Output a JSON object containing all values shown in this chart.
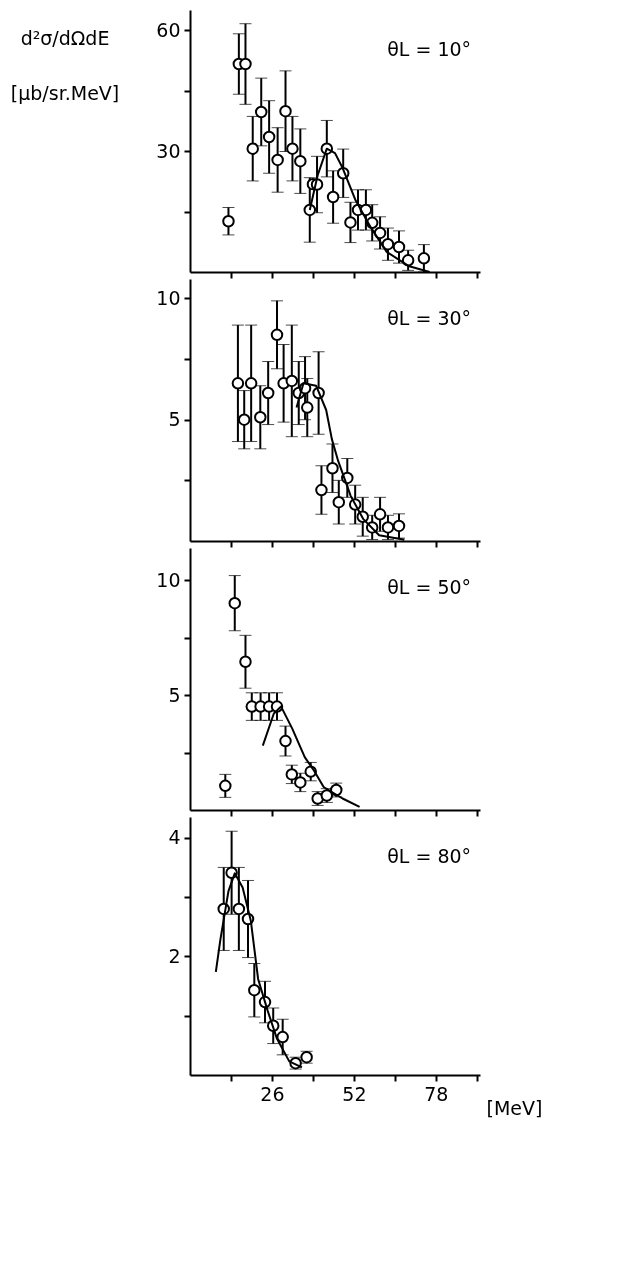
{
  "chart_data": [
    {
      "type": "scatter",
      "ylabel": "d²σ/dΩdE [μb/sr.MeV]",
      "annotations": [
        "θL = 10°"
      ],
      "xlim": [
        0,
        92
      ],
      "ylim": [
        0,
        65
      ],
      "xticks": [
        {
          "value": 13,
          "label": null
        },
        {
          "value": 26,
          "label": null
        },
        {
          "value": 39,
          "label": null
        },
        {
          "value": 52,
          "label": null
        },
        {
          "value": 65,
          "label": null
        },
        {
          "value": 78,
          "label": null
        },
        {
          "value": 91,
          "label": null
        }
      ],
      "yticks": [
        {
          "value": 15,
          "label": null
        },
        30,
        {
          "value": 45,
          "label": null
        },
        60
      ],
      "tick_labels": "y",
      "grid": false,
      "legend": false,
      "series": [
        {
          "type": "scatter",
          "color": "#000000",
          "marker": "circle",
          "x": [
            12.2,
            15.5,
            17.6,
            19.9,
            22.6,
            25.1,
            27.8,
            30.3,
            32.5,
            35.0,
            38.0,
            39.0,
            40.3,
            43.4,
            45.4,
            48.6,
            50.9,
            53.3,
            55.8,
            57.8,
            60.3,
            62.8,
            66.3,
            69.2,
            74.2
          ],
          "values": [
            12.6,
            51.6,
            51.6,
            30.6,
            39.7,
            33.5,
            27.8,
            39.9,
            30.6,
            27.5,
            15.4,
            21.8,
            21.7,
            30.6,
            18.6,
            24.5,
            12.3,
            15.4,
            15.4,
            12.2,
            9.7,
            6.9,
            6.2,
            2.9,
            3.4
          ],
          "errors": [
            3.4,
            7.5,
            10,
            8,
            8.4,
            9,
            8,
            10,
            8,
            8,
            8,
            null,
            7,
            7,
            6.5,
            6,
            5,
            5,
            5,
            4.5,
            4,
            4,
            4,
            2.5,
            3.4
          ]
        },
        {
          "type": "line",
          "color": "#000000",
          "line_style": "solid",
          "x": [
            38.0,
            40.5,
            43.4,
            46.0,
            48.3,
            52.4,
            57.4,
            62.4,
            69.3,
            76.0
          ],
          "values": [
            15.4,
            24.0,
            30.6,
            29.5,
            26.0,
            18.0,
            11.0,
            5.0,
            1.5,
            0.0
          ]
        }
      ]
    },
    {
      "type": "scatter",
      "xlim": [
        0,
        92
      ],
      "ylim": [
        0,
        10.8
      ],
      "xticks": [
        {
          "value": 13,
          "label": null
        },
        {
          "value": 26,
          "label": null
        },
        {
          "value": 39,
          "label": null
        },
        {
          "value": 52,
          "label": null
        },
        {
          "value": 65,
          "label": null
        },
        {
          "value": 78,
          "label": null
        },
        {
          "value": 91,
          "label": null
        }
      ],
      "yticks": [
        {
          "value": 2.5,
          "label": null
        },
        5,
        {
          "value": 7.5,
          "label": null
        },
        10
      ],
      "tick_labels": "y",
      "grid": false,
      "legend": false,
      "annotations": [
        "θL = 30°"
      ],
      "series": [
        {
          "type": "scatter",
          "color": "#000000",
          "marker": "circle",
          "x": [
            15.2,
            17.2,
            19.4,
            22.3,
            24.8,
            27.6,
            29.7,
            32.3,
            34.5,
            36.5,
            37.2,
            40.8,
            41.7,
            45.2,
            47.2,
            49.9,
            52.4,
            54.8,
            57.8,
            60.3,
            62.8,
            66.3
          ],
          "values": [
            6.5,
            5.0,
            6.5,
            5.1,
            6.1,
            8.5,
            6.5,
            6.6,
            6.1,
            6.3,
            5.5,
            6.1,
            2.1,
            3.0,
            1.6,
            2.6,
            1.5,
            1.0,
            0.56,
            1.1,
            0.56,
            0.62
          ],
          "errors": [
            2.4,
            1.2,
            2.4,
            1.3,
            1.3,
            1.4,
            1.6,
            2.3,
            1.3,
            1.3,
            1.2,
            1.7,
            1.0,
            1.0,
            0.9,
            0.8,
            0.8,
            0.8,
            0.5,
            0.7,
            0.5,
            0.5
          ]
        },
        {
          "type": "line",
          "color": "#000000",
          "line_style": "solid",
          "x": [
            33.8,
            36.0,
            40.0,
            43.2,
            45.0,
            47.0,
            51.0,
            55.0,
            60.0,
            68.0
          ],
          "values": [
            5.5,
            6.5,
            6.4,
            5.4,
            4.2,
            3.3,
            1.85,
            0.9,
            0.24,
            0.05
          ]
        }
      ]
    },
    {
      "type": "scatter",
      "xlim": [
        0,
        92
      ],
      "ylim": [
        0,
        11.4
      ],
      "xticks": [
        {
          "value": 13,
          "label": null
        },
        {
          "value": 26,
          "label": null
        },
        {
          "value": 39,
          "label": null
        },
        {
          "value": 52,
          "label": null
        },
        {
          "value": 65,
          "label": null
        },
        {
          "value": 78,
          "label": null
        },
        {
          "value": 91,
          "label": null
        }
      ],
      "yticks": [
        {
          "value": 2.5,
          "label": null
        },
        5,
        {
          "value": 7.5,
          "label": null
        },
        10
      ],
      "tick_labels": "y",
      "grid": false,
      "legend": false,
      "annotations": [
        "θL = 50°"
      ],
      "series": [
        {
          "type": "scatter",
          "color": "#000000",
          "marker": "circle",
          "x": [
            11.2,
            14.2,
            17.6,
            19.6,
            22.4,
            25.1,
            27.6,
            30.3,
            32.3,
            35.0,
            38.3,
            40.5,
            43.4,
            46.4
          ],
          "values": [
            1.05,
            9.0,
            6.45,
            4.5,
            4.5,
            4.5,
            4.5,
            3.0,
            1.55,
            1.2,
            1.67,
            0.5,
            0.63,
            0.87
          ],
          "errors": [
            0.5,
            1.2,
            1.15,
            0.6,
            0.6,
            0.6,
            0.6,
            0.65,
            0.4,
            0.4,
            0.4,
            0.3,
            0.3,
            0.3
          ]
        },
        {
          "type": "line",
          "color": "#000000",
          "line_style": "solid",
          "x": [
            23.1,
            26.6,
            28.9,
            32.4,
            36.4,
            39.4,
            42.4,
            48.4,
            53.8
          ],
          "values": [
            2.8,
            4.2,
            4.5,
            3.55,
            2.3,
            1.7,
            1.0,
            0.5,
            0.14
          ]
        }
      ]
    },
    {
      "type": "scatter",
      "xlabel": "[MeV]",
      "xlim": [
        0,
        92
      ],
      "ylim": [
        0,
        4.35
      ],
      "xticks": [
        {
          "value": 13,
          "label": null
        },
        26,
        {
          "value": 39,
          "label": null
        },
        52,
        {
          "value": 65,
          "label": null
        },
        78,
        {
          "value": 91,
          "label": null
        }
      ],
      "yticks": [
        {
          "value": 1,
          "label": null
        },
        2,
        {
          "value": 3,
          "label": null
        },
        4
      ],
      "grid": false,
      "legend": false,
      "annotations": [
        "θL = 80°"
      ],
      "series": [
        {
          "type": "scatter",
          "color": "#000000",
          "marker": "circle",
          "x": [
            10.7,
            13.2,
            15.5,
            18.4,
            20.4,
            23.8,
            26.4,
            29.4,
            33.5,
            37.0
          ],
          "values": [
            2.8,
            3.41,
            2.8,
            2.63,
            1.43,
            1.23,
            0.83,
            0.64,
            0.2,
            0.3
          ],
          "errors": [
            0.7,
            0.7,
            0.7,
            0.65,
            0.45,
            0.35,
            0.3,
            0.3,
            0.1,
            0.1
          ]
        },
        {
          "type": "line",
          "color": "#000000",
          "line_style": "solid",
          "x": [
            8.2,
            9.6,
            12.2,
            14.2,
            16.7,
            19.3,
            21.6,
            24.6,
            27.6,
            31.5,
            35.5
          ],
          "values": [
            1.74,
            2.27,
            3.1,
            3.4,
            3.16,
            2.6,
            1.62,
            1.09,
            0.61,
            0.23,
            0.13
          ]
        }
      ]
    }
  ]
}
